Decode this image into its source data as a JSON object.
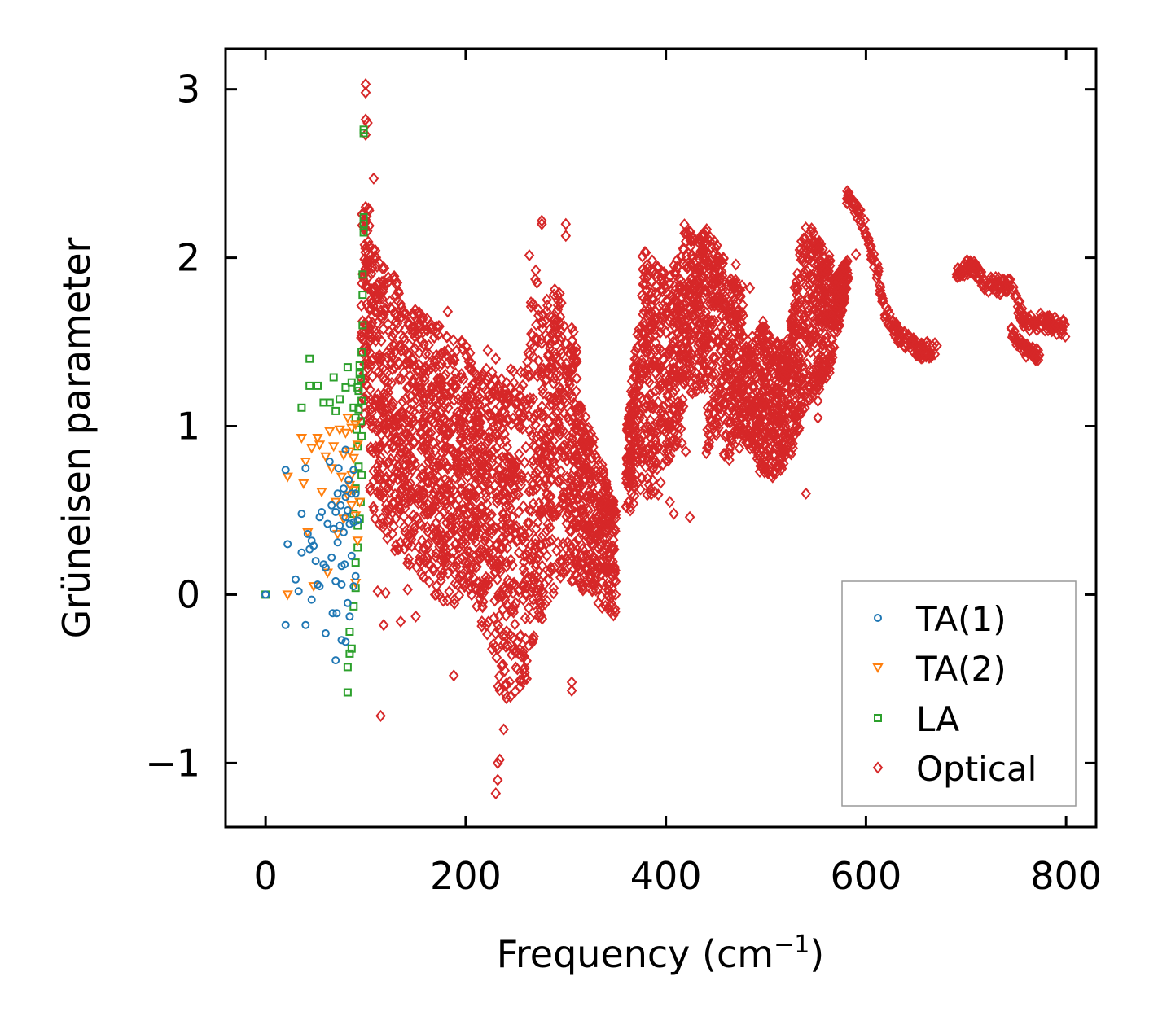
{
  "chart_data": {
    "type": "scatter",
    "title": "",
    "xlabel": "Frequency (cm",
    "xlabel_sup": "−1",
    "xlabel_close": ")",
    "ylabel": "Grüneisen parameter",
    "xlim": [
      -40,
      830
    ],
    "ylim": [
      -1.38,
      3.24
    ],
    "xticks": [
      0,
      200,
      400,
      600,
      800
    ],
    "yticks": [
      -1,
      0,
      1,
      2,
      3
    ],
    "xtick_labels": [
      "0",
      "200",
      "400",
      "600",
      "800"
    ],
    "ytick_labels": [
      "−1",
      "0",
      "1",
      "2",
      "3"
    ],
    "legend_position": "lower-right",
    "series": [
      {
        "name": "TA(1)",
        "marker": "circle",
        "color": "#1f77b4",
        "points": [
          [
            0,
            0
          ],
          [
            20,
            0.74
          ],
          [
            20,
            -0.18
          ],
          [
            22,
            0.3
          ],
          [
            30,
            0.09
          ],
          [
            33,
            0.02
          ],
          [
            36,
            0.48
          ],
          [
            36,
            0.25
          ],
          [
            40,
            -0.18
          ],
          [
            40,
            0.75
          ],
          [
            42,
            0.36
          ],
          [
            44,
            0.27
          ],
          [
            46,
            0.32
          ],
          [
            46,
            -0.03
          ],
          [
            48,
            0.29
          ],
          [
            50,
            0.2
          ],
          [
            52,
            0.06
          ],
          [
            54,
            0.05
          ],
          [
            54,
            0.46
          ],
          [
            56,
            0.49
          ],
          [
            58,
            0.18
          ],
          [
            60,
            0.16
          ],
          [
            60,
            -0.23
          ],
          [
            62,
            0.42
          ],
          [
            64,
            0.79
          ],
          [
            66,
            0.53
          ],
          [
            66,
            0.22
          ],
          [
            67,
            -0.11
          ],
          [
            68,
            0.39
          ],
          [
            70,
            0.49
          ],
          [
            70,
            0.08
          ],
          [
            71,
            -0.11
          ],
          [
            72,
            0.6
          ],
          [
            72,
            0.31
          ],
          [
            73,
            0.75
          ],
          [
            74,
            0.41
          ],
          [
            75,
            0.53
          ],
          [
            76,
            0.17
          ],
          [
            76,
            -0.27
          ],
          [
            78,
            0.63
          ],
          [
            78,
            0.37
          ],
          [
            79,
            0.18
          ],
          [
            80,
            0.86
          ],
          [
            80,
            0.46
          ],
          [
            80,
            -0.28
          ],
          [
            82,
            0.5
          ],
          [
            82,
            -0.05
          ],
          [
            83,
            0.68
          ],
          [
            84,
            0.42
          ],
          [
            84,
            -0.13
          ],
          [
            86,
            0.6
          ],
          [
            86,
            0.23
          ],
          [
            88,
            0.43
          ],
          [
            88,
            0.05
          ],
          [
            90,
            0.6
          ],
          [
            90,
            0.11
          ],
          [
            92,
            0.44
          ],
          [
            70,
            -0.39
          ],
          [
            76,
            0.06
          ],
          [
            88,
            0.74
          ],
          [
            80,
            0.58
          ]
        ]
      },
      {
        "name": "TA(2)",
        "marker": "triangle",
        "color": "#ff7f0e",
        "points": [
          [
            22,
            0.7
          ],
          [
            22,
            0
          ],
          [
            36,
            0.93
          ],
          [
            38,
            0.66
          ],
          [
            40,
            0.79
          ],
          [
            42,
            0.37
          ],
          [
            46,
            0.87
          ],
          [
            48,
            0.05
          ],
          [
            52,
            0.93
          ],
          [
            54,
            0.89
          ],
          [
            56,
            0.61
          ],
          [
            60,
            0.82
          ],
          [
            62,
            0.13
          ],
          [
            64,
            0.97
          ],
          [
            66,
            0.75
          ],
          [
            68,
            0.88
          ],
          [
            70,
            0.55
          ],
          [
            72,
            0.36
          ],
          [
            74,
            0.98
          ],
          [
            76,
            0.7
          ],
          [
            78,
            0.45
          ],
          [
            80,
            0.96
          ],
          [
            82,
            1.05
          ],
          [
            82,
            0.59
          ],
          [
            84,
            0.65
          ],
          [
            84,
            0.85
          ],
          [
            86,
            0.53
          ],
          [
            86,
            0.71
          ],
          [
            88,
            0.81
          ],
          [
            88,
            0.62
          ],
          [
            90,
            1.01
          ],
          [
            90,
            0.47
          ],
          [
            90,
            0.07
          ],
          [
            92,
            0.89
          ],
          [
            94,
            0.55
          ],
          [
            92,
            0.32
          ],
          [
            86,
            0.99
          ],
          [
            78,
            0.83
          ]
        ]
      },
      {
        "name": "LA",
        "marker": "square",
        "color": "#2ca02c",
        "points": [
          [
            0,
            0
          ],
          [
            36,
            1.11
          ],
          [
            44,
            1.4
          ],
          [
            44,
            1.24
          ],
          [
            52,
            1.24
          ],
          [
            58,
            1.14
          ],
          [
            64,
            1.14
          ],
          [
            68,
            1.29
          ],
          [
            70,
            1.09
          ],
          [
            74,
            1.16
          ],
          [
            80,
            1.23
          ],
          [
            82,
            1.35
          ],
          [
            82,
            -0.43
          ],
          [
            82,
            -0.58
          ],
          [
            84,
            -0.22
          ],
          [
            84,
            -0.35
          ],
          [
            86,
            1.26
          ],
          [
            86,
            -0.32
          ],
          [
            88,
            1.11
          ],
          [
            88,
            -0.07
          ],
          [
            88,
            0.48
          ],
          [
            90,
            1.05
          ],
          [
            90,
            0.63
          ],
          [
            90,
            0.19
          ],
          [
            90,
            0.04
          ],
          [
            92,
            1.23
          ],
          [
            92,
            0.88
          ],
          [
            92,
            0.41
          ],
          [
            92,
            0.28
          ],
          [
            93,
            1.1
          ],
          [
            93,
            0.76
          ],
          [
            94,
            1.36
          ],
          [
            94,
            1.31
          ],
          [
            95,
            1.03
          ],
          [
            95,
            0.55
          ],
          [
            96,
            1.44
          ],
          [
            96,
            1.15
          ],
          [
            96,
            0.71
          ],
          [
            97,
            1.6
          ],
          [
            97,
            1.78
          ],
          [
            97,
            1.9
          ],
          [
            98,
            2.15
          ],
          [
            98,
            2.2
          ],
          [
            98,
            2.24
          ],
          [
            98,
            2.74
          ],
          [
            98,
            2.76
          ],
          [
            93,
            1.21
          ],
          [
            95,
            1.28
          ],
          [
            96,
            0.94
          ],
          [
            94,
            0.45
          ],
          [
            91,
            0.98
          ]
        ]
      },
      {
        "name": "Optical",
        "marker": "diamond",
        "color": "#d62728",
        "clusters": [
          {
            "x": [
              95,
              104
            ],
            "ylo": [
              0.7,
              1.45
            ],
            "yhi": [
              2.25,
              2.4
            ]
          },
          {
            "x": [
              104,
              135
            ],
            "ylo": [
              0.5,
              0.2
            ],
            "yhi": [
              2.1,
              1.85
            ]
          },
          {
            "x": [
              135,
              175
            ],
            "ylo": [
              0.2,
              -0.05
            ],
            "yhi": [
              1.75,
              1.6
            ]
          },
          {
            "x": [
              175,
              205
            ],
            "ylo": [
              -0.1,
              0.0
            ],
            "yhi": [
              1.55,
              1.5
            ]
          },
          {
            "x": [
              205,
              232
            ],
            "ylo": [
              0.0,
              -0.5
            ],
            "yhi": [
              1.4,
              1.3
            ]
          },
          {
            "x": [
              232,
              262
            ],
            "ylo": [
              -0.65,
              -0.55
            ],
            "yhi": [
              1.3,
              1.4
            ]
          },
          {
            "x": [
              262,
              288
            ],
            "ylo": [
              -0.35,
              0.0
            ],
            "yhi": [
              2.05,
              1.65
            ]
          },
          {
            "x": [
              288,
              312
            ],
            "ylo": [
              0.1,
              0.05
            ],
            "yhi": [
              1.9,
              1.5
            ]
          },
          {
            "x": [
              312,
              338
            ],
            "ylo": [
              0.05,
              -0.1
            ],
            "yhi": [
              1.2,
              0.75
            ]
          },
          {
            "x": [
              338,
              350
            ],
            "ylo": [
              -0.1,
              -0.15
            ],
            "yhi": [
              0.7,
              0.55
            ]
          },
          {
            "x": [
              360,
              376
            ],
            "ylo": [
              0.45,
              0.55
            ],
            "yhi": [
              0.95,
              1.8
            ]
          },
          {
            "x": [
              376,
              398
            ],
            "ylo": [
              0.55,
              0.6
            ],
            "yhi": [
              2.05,
              1.95
            ]
          },
          {
            "x": [
              400,
              418
            ],
            "ylo": [
              0.7,
              1.0
            ],
            "yhi": [
              1.85,
              2.1
            ]
          },
          {
            "x": [
              418,
              440
            ],
            "ylo": [
              1.15,
              1.2
            ],
            "yhi": [
              2.2,
              2.15
            ]
          },
          {
            "x": [
              440,
              458
            ],
            "ylo": [
              0.8,
              1.0
            ],
            "yhi": [
              2.2,
              2.0
            ]
          },
          {
            "x": [
              458,
              478
            ],
            "ylo": [
              0.75,
              0.9
            ],
            "yhi": [
              1.9,
              1.85
            ]
          },
          {
            "x": [
              478,
              500
            ],
            "ylo": [
              0.9,
              0.65
            ],
            "yhi": [
              1.5,
              1.65
            ]
          },
          {
            "x": [
              500,
              520
            ],
            "ylo": [
              0.65,
              0.75
            ],
            "yhi": [
              1.55,
              1.5
            ]
          },
          {
            "x": [
              520,
              538
            ],
            "ylo": [
              0.75,
              1.0
            ],
            "yhi": [
              1.45,
              2.25
            ]
          },
          {
            "x": [
              538,
              565
            ],
            "ylo": [
              1.1,
              1.3
            ],
            "yhi": [
              2.25,
              2.0
            ]
          },
          {
            "x": [
              565,
              582
            ],
            "ylo": [
              1.35,
              1.85
            ],
            "yhi": [
              1.85,
              2.0
            ]
          }
        ],
        "bands": [
          {
            "path": [
              [
                580,
                2.38
              ],
              [
                598,
                2.2
              ],
              [
                612,
                1.9
              ],
              [
                618,
                1.7
              ],
              [
                632,
                1.55
              ],
              [
                652,
                1.45
              ],
              [
                672,
                1.45
              ]
            ],
            "w": 0.1
          },
          {
            "path": [
              [
                690,
                1.9
              ],
              [
                705,
                1.95
              ],
              [
                720,
                1.85
              ],
              [
                745,
                1.82
              ],
              [
                760,
                1.6
              ],
              [
                775,
                1.62
              ],
              [
                800,
                1.58
              ]
            ],
            "w": 0.1
          },
          {
            "path": [
              [
                745,
                1.55
              ],
              [
                760,
                1.45
              ],
              [
                775,
                1.42
              ]
            ],
            "w": 0.08
          }
        ],
        "outliers": [
          [
            100,
            3.03
          ],
          [
            100,
            2.98
          ],
          [
            100,
            2.82
          ],
          [
            100,
            2.73
          ],
          [
            108,
            2.47
          ],
          [
            112,
            0.02
          ],
          [
            115,
            -0.72
          ],
          [
            118,
            -0.18
          ],
          [
            120,
            0.01
          ],
          [
            135,
            -0.16
          ],
          [
            142,
            0.03
          ],
          [
            182,
            1.68
          ],
          [
            188,
            -0.48
          ],
          [
            196,
            0.86
          ],
          [
            222,
            1.45
          ],
          [
            230,
            -1.18
          ],
          [
            232,
            -1.1
          ],
          [
            232,
            -1.0
          ],
          [
            234,
            -0.98
          ],
          [
            238,
            -0.8
          ],
          [
            276,
            2.22
          ],
          [
            276,
            2.2
          ],
          [
            300,
            2.2
          ],
          [
            300,
            2.13
          ],
          [
            306,
            -0.57
          ],
          [
            306,
            -0.52
          ],
          [
            380,
            2.03
          ],
          [
            412,
            0.95
          ],
          [
            416,
            0.9
          ],
          [
            420,
            0.85
          ],
          [
            404,
            0.55
          ],
          [
            408,
            0.48
          ],
          [
            424,
            0.46
          ],
          [
            470,
            1.96
          ],
          [
            484,
            1.82
          ],
          [
            552,
            1.05
          ],
          [
            552,
            1.15
          ],
          [
            590,
            2.02
          ],
          [
            540,
            0.6
          ],
          [
            230,
            1.4
          ],
          [
            150,
            -0.13
          ],
          [
            102,
            2.8
          ]
        ]
      }
    ]
  }
}
